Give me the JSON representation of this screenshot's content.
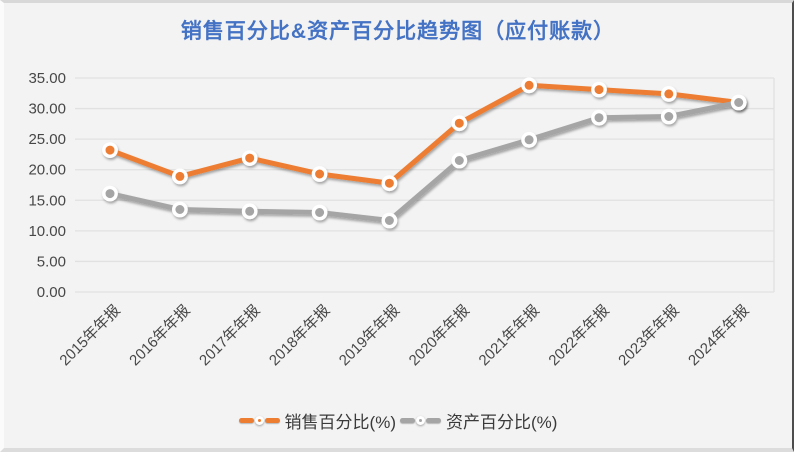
{
  "window": {
    "title": "销售百分比&资产百分比趋势图（应付账款）"
  },
  "chart_data": {
    "type": "line",
    "title": "销售百分比&资产百分比趋势图（应付账款）",
    "categories": [
      "2015年年报",
      "2016年年报",
      "2017年年报",
      "2018年年报",
      "2019年年报",
      "2020年年报",
      "2021年年报",
      "2022年年报",
      "2023年年报",
      "2024年年报"
    ],
    "series": [
      {
        "name": "销售百分比(%)",
        "color": "#ED7D31",
        "values": [
          23.2,
          18.9,
          21.9,
          19.3,
          17.8,
          27.6,
          33.8,
          33.1,
          32.4,
          31.0
        ]
      },
      {
        "name": "资产百分比(%)",
        "color": "#A5A5A5",
        "values": [
          16.1,
          13.5,
          13.2,
          13.0,
          11.7,
          21.5,
          24.9,
          28.5,
          28.7,
          31.0
        ]
      }
    ],
    "ylim": [
      0,
      35
    ],
    "ytick_interval": 5,
    "ytick_labels": [
      "0.00",
      "5.00",
      "10.00",
      "15.00",
      "20.00",
      "25.00",
      "30.00",
      "35.00"
    ],
    "grid": true,
    "legend_position": "bottom",
    "x_label_rotation_deg": 45
  },
  "style": {
    "title_color": "#4472C4",
    "background": "#F3F3F3",
    "gridline_color": "#E1E1E1",
    "axis_text_color": "#474747",
    "legend_text_color": "#3A3A3A"
  }
}
